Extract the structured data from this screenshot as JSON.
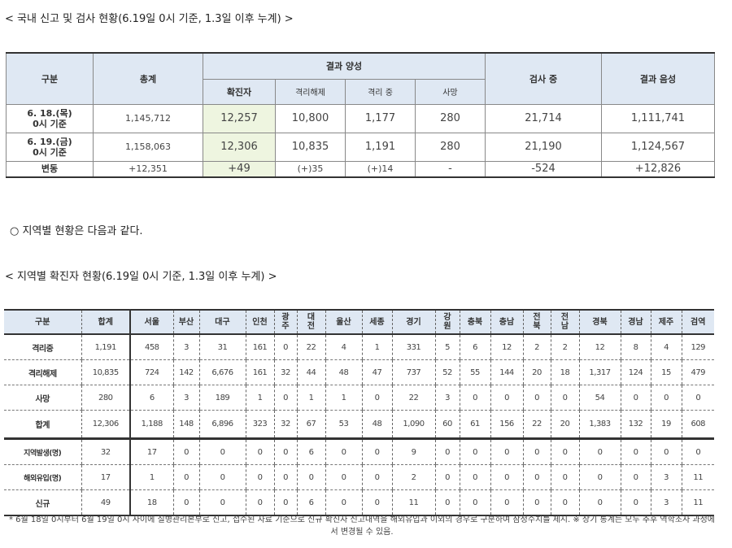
{
  "caption1": "< 국내 신고 및 검사 현황(6.19일 0시 기준, 1.3일 이후 누계) >",
  "table1": {
    "headers": {
      "category": "구분",
      "total": "총계",
      "positive": "결과 양성",
      "confirmed": "확진자",
      "released": "격리해제",
      "isolated": "격리 중",
      "deceased": "사망",
      "testing": "검사 중",
      "negative": "결과 음성"
    },
    "rows": [
      {
        "label": [
          "6. 18.(목)",
          "0시 기준"
        ],
        "values": [
          "1,145,712",
          "12,257",
          "10,800",
          "1,177",
          "280",
          "21,714",
          "1,111,741"
        ]
      },
      {
        "label": [
          "6. 19.(금)",
          "0시 기준"
        ],
        "values": [
          "1,158,063",
          "12,306",
          "10,835",
          "1,191",
          "280",
          "21,190",
          "1,124,567"
        ]
      },
      {
        "label": [
          "변동"
        ],
        "values": [
          "+12,351",
          "+49",
          "(+)35",
          "(+)14",
          "-",
          "-524",
          "+12,826"
        ]
      }
    ]
  },
  "bullet": "○ 지역별 현황은 다음과 같다.",
  "caption2": "< 지역별 확진자 현황(6.19일 0시 기준, 1.3일 이후 누계) >",
  "table2": {
    "headers": [
      "구분",
      "합계",
      "서울",
      "부산",
      "대구",
      "인천",
      "광주",
      "대전",
      "울산",
      "세종",
      "경기",
      "강원",
      "충북",
      "충남",
      "전북",
      "전남",
      "경북",
      "경남",
      "제주",
      "검역"
    ],
    "rows": [
      [
        "격리중",
        "1,191",
        "458",
        "3",
        "31",
        "161",
        "0",
        "22",
        "4",
        "1",
        "331",
        "5",
        "6",
        "12",
        "2",
        "2",
        "12",
        "8",
        "4",
        "129"
      ],
      [
        "격리해제",
        "10,835",
        "724",
        "142",
        "6,676",
        "161",
        "32",
        "44",
        "48",
        "47",
        "737",
        "52",
        "55",
        "144",
        "20",
        "18",
        "1,317",
        "124",
        "15",
        "479"
      ],
      [
        "사망",
        "280",
        "6",
        "3",
        "189",
        "1",
        "0",
        "1",
        "1",
        "0",
        "22",
        "3",
        "0",
        "0",
        "0",
        "0",
        "54",
        "0",
        "0",
        "0"
      ],
      [
        "합계",
        "12,306",
        "1,188",
        "148",
        "6,896",
        "323",
        "32",
        "67",
        "53",
        "48",
        "1,090",
        "60",
        "61",
        "156",
        "22",
        "20",
        "1,383",
        "132",
        "19",
        "608"
      ],
      [
        "지역발생(명)",
        "32",
        "17",
        "0",
        "0",
        "0",
        "0",
        "6",
        "0",
        "0",
        "9",
        "0",
        "0",
        "0",
        "0",
        "0",
        "0",
        "0",
        "0",
        "0"
      ],
      [
        "해외유입(명)",
        "17",
        "1",
        "0",
        "0",
        "0",
        "0",
        "0",
        "0",
        "0",
        "2",
        "0",
        "0",
        "0",
        "0",
        "0",
        "0",
        "0",
        "3",
        "11"
      ],
      [
        "신규",
        "49",
        "18",
        "0",
        "0",
        "0",
        "0",
        "6",
        "0",
        "0",
        "11",
        "0",
        "0",
        "0",
        "0",
        "0",
        "0",
        "0",
        "3",
        "11"
      ]
    ]
  },
  "footnote": "* 6월 18일 0시부터 6월 19일 0시 사이에 질병관리본부로 신고, 접수된 자료 기준으로 신규 확진자 신고내역을 해외유입과 이외의 경우로 구분하여 잠정수치를 제시. ※ 상기 통계는 모두 추후 역학조사 과정에서 변경될 수 있음."
}
